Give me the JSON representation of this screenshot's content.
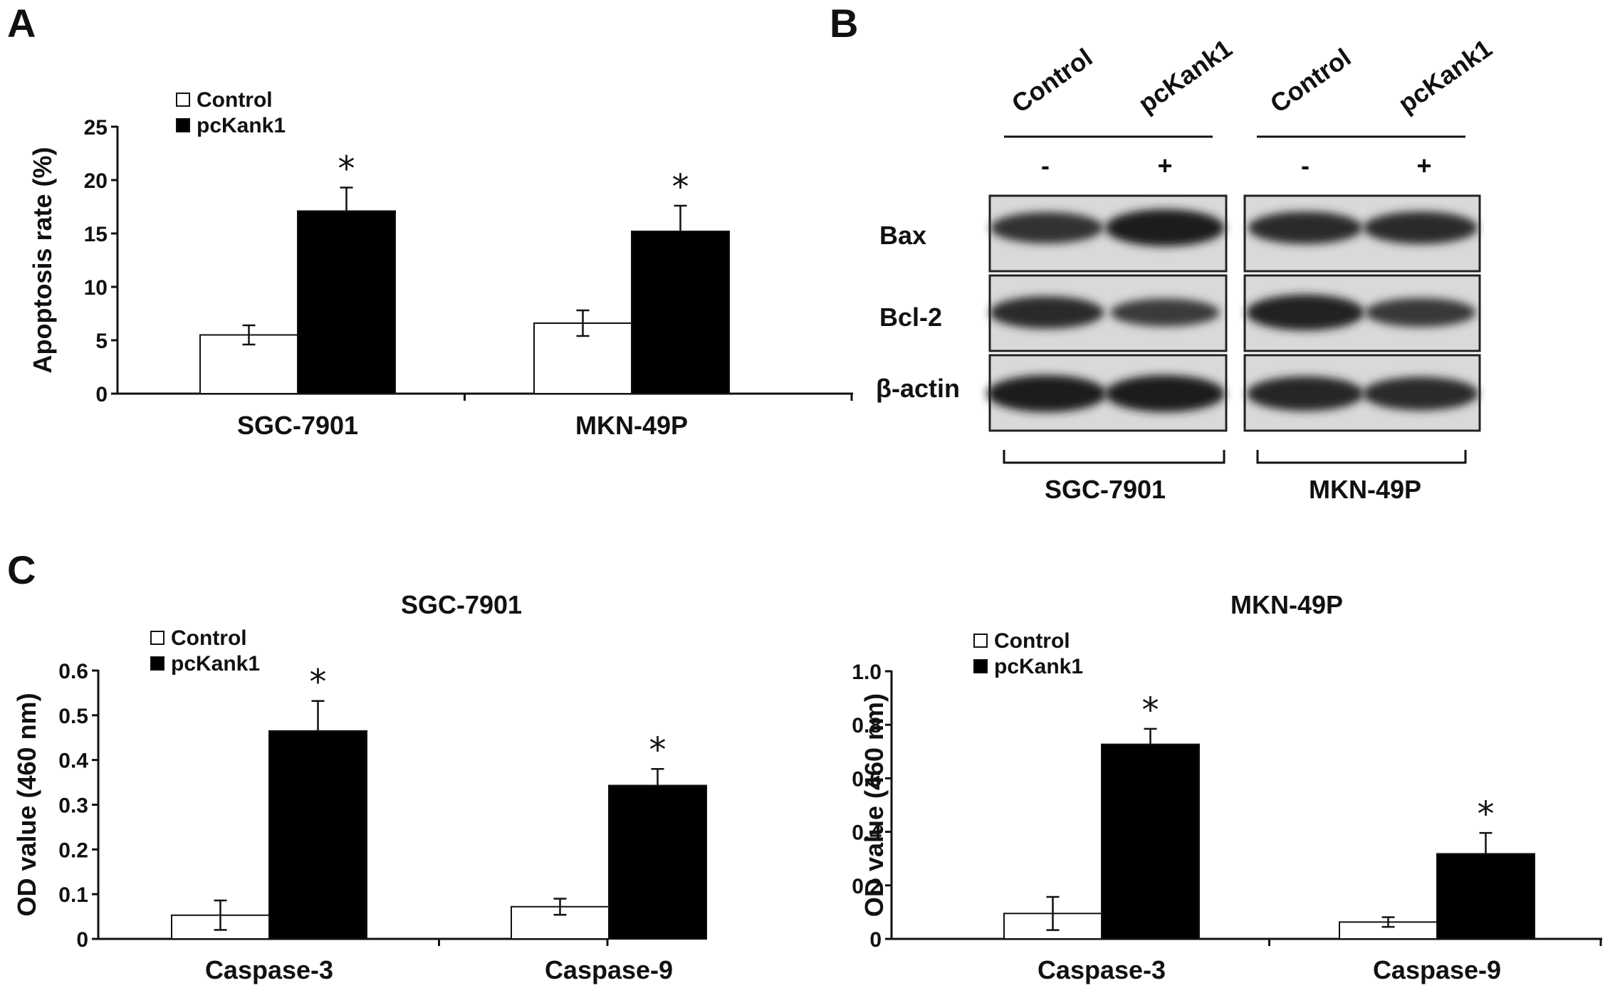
{
  "panels": [
    {
      "id": "A",
      "letter": "A"
    },
    {
      "id": "B",
      "letter": "B"
    },
    {
      "id": "C",
      "letter": "C"
    }
  ],
  "chart_data": [
    {
      "panel": "A",
      "type": "bar",
      "title": "",
      "categories": [
        "SGC-7901",
        "MKN-49P"
      ],
      "series": [
        {
          "name": "Control",
          "values": [
            5.5,
            6.6
          ],
          "errors": [
            0.9,
            1.2
          ],
          "color": "#ffffff"
        },
        {
          "name": "pcKank1",
          "values": [
            17.1,
            15.2
          ],
          "errors": [
            2.2,
            2.4
          ],
          "color": "#000000"
        }
      ],
      "significance": [
        [
          false,
          true
        ],
        [
          false,
          true
        ]
      ],
      "significance_marker": "*",
      "xlabel": "",
      "ylabel": "Apoptosis rate (%)",
      "ylim": [
        0,
        25
      ],
      "yticks": [
        0,
        5,
        10,
        15,
        20,
        25
      ],
      "legend": "top-left",
      "grid": false
    },
    {
      "panel": "C1",
      "type": "bar",
      "title": "SGC-7901",
      "categories": [
        "Caspase-3",
        "Caspase-9"
      ],
      "series": [
        {
          "name": "Control",
          "values": [
            0.053,
            0.072
          ],
          "errors": [
            0.033,
            0.018
          ],
          "color": "#ffffff"
        },
        {
          "name": "pcKank1",
          "values": [
            0.465,
            0.343
          ],
          "errors": [
            0.067,
            0.037
          ],
          "color": "#000000"
        }
      ],
      "significance": [
        [
          false,
          true
        ],
        [
          false,
          true
        ]
      ],
      "significance_marker": "*",
      "xlabel": "",
      "ylabel": "OD value (460 nm)",
      "ylim": [
        0,
        0.6
      ],
      "yticks": [
        "0",
        "0.1",
        "0.2",
        "0.3",
        "0.4",
        "0.5",
        "0.6"
      ],
      "legend": "top-left",
      "grid": false
    },
    {
      "panel": "C2",
      "type": "bar",
      "title": "MKN-49P",
      "categories": [
        "Caspase-3",
        "Caspase-9"
      ],
      "series": [
        {
          "name": "Control",
          "values": [
            0.095,
            0.063
          ],
          "errors": [
            0.062,
            0.018
          ],
          "color": "#ffffff"
        },
        {
          "name": "pcKank1",
          "values": [
            0.727,
            0.318
          ],
          "errors": [
            0.058,
            0.078
          ],
          "color": "#000000"
        }
      ],
      "significance": [
        [
          false,
          true
        ],
        [
          false,
          true
        ]
      ],
      "significance_marker": "*",
      "xlabel": "",
      "ylabel": "OD value (460 nm)",
      "ylim": [
        0,
        1.0
      ],
      "yticks": [
        "0",
        "0.2",
        "0.4",
        "0.6",
        "0.8",
        "1.0"
      ],
      "legend": "top-left",
      "grid": false
    }
  ],
  "western_blot": {
    "lanes": [
      "Control",
      "pcKank1",
      "Control",
      "pcKank1"
    ],
    "treatment": [
      "-",
      "+",
      "-",
      "+"
    ],
    "proteins": [
      "Bax",
      "Bcl-2",
      "β-actin"
    ],
    "groups": [
      "SGC-7901",
      "MKN-49P"
    ],
    "band_intensity": [
      [
        0.75,
        1.0,
        0.8,
        0.8
      ],
      [
        0.8,
        0.6,
        0.95,
        0.65
      ],
      [
        1.0,
        1.0,
        0.9,
        0.85
      ]
    ]
  }
}
